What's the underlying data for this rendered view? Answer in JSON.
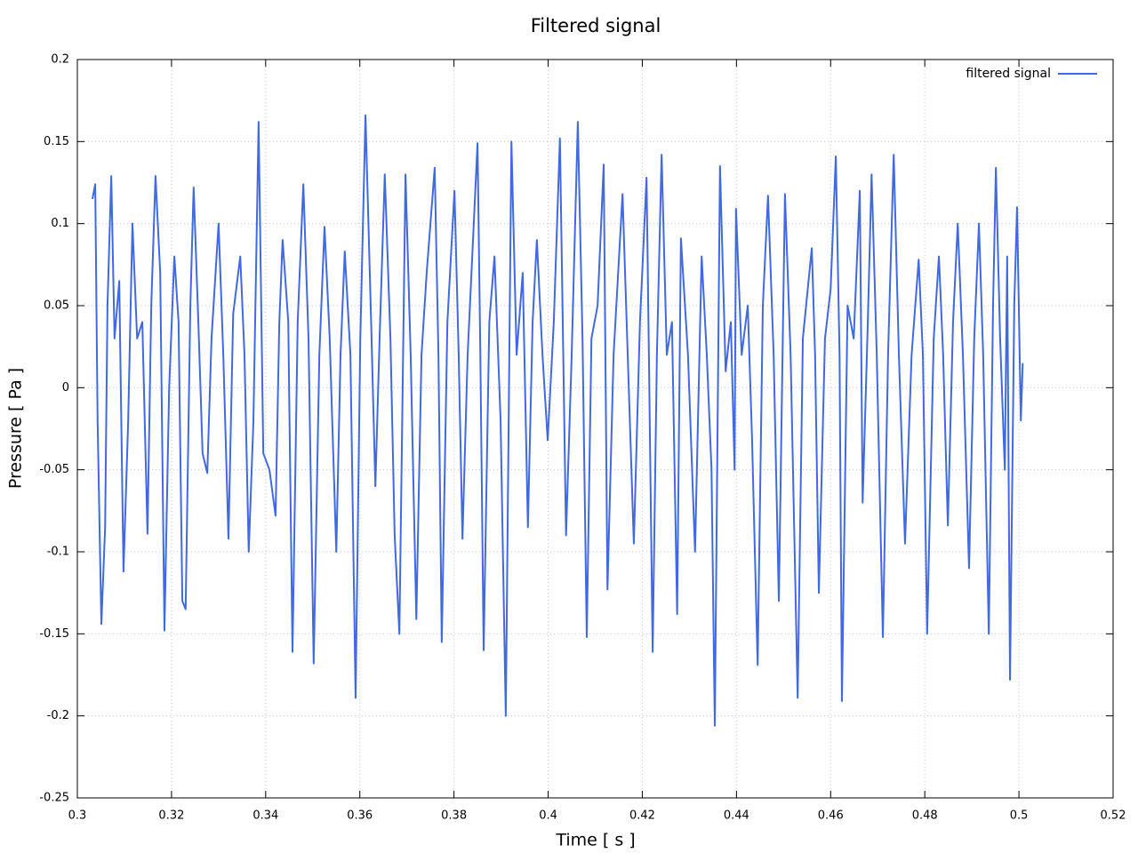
{
  "chart_data": {
    "type": "line",
    "title": "Filtered signal",
    "xlabel": "Time [ s ]",
    "ylabel": "Pressure [ Pa ]",
    "xlim": [
      0.3,
      0.52
    ],
    "ylim": [
      -0.25,
      0.2
    ],
    "xticks": [
      0.3,
      0.32,
      0.34,
      0.36,
      0.38,
      0.4,
      0.42,
      0.44,
      0.46,
      0.48,
      0.5,
      0.52
    ],
    "yticks": [
      -0.25,
      -0.2,
      -0.15,
      -0.1,
      -0.05,
      0,
      0.05,
      0.1,
      0.15,
      0.2
    ],
    "grid": true,
    "legend": "top-right",
    "x": [
      0.3032,
      0.3038,
      0.3043,
      0.3051,
      0.3059,
      0.3064,
      0.3072,
      0.3079,
      0.3089,
      0.3098,
      0.3108,
      0.3117,
      0.3127,
      0.3138,
      0.3149,
      0.3157,
      0.3166,
      0.3176,
      0.3185,
      0.3195,
      0.3206,
      0.3215,
      0.3223,
      0.323,
      0.324,
      0.3247,
      0.3257,
      0.3266,
      0.3276,
      0.3285,
      0.33,
      0.331,
      0.3321,
      0.3331,
      0.3346,
      0.3355,
      0.3364,
      0.3374,
      0.3385,
      0.3395,
      0.3408,
      0.3421,
      0.3429,
      0.3436,
      0.3448,
      0.3457,
      0.3468,
      0.348,
      0.3491,
      0.3502,
      0.3514,
      0.3525,
      0.3536,
      0.355,
      0.3559,
      0.3568,
      0.358,
      0.3591,
      0.3601,
      0.3612,
      0.3624,
      0.3633,
      0.3642,
      0.3653,
      0.3665,
      0.3674,
      0.3684,
      0.3697,
      0.3708,
      0.372,
      0.3731,
      0.3742,
      0.3759,
      0.3767,
      0.3774,
      0.3786,
      0.3801,
      0.381,
      0.3818,
      0.3829,
      0.385,
      0.3856,
      0.3863,
      0.3875,
      0.3886,
      0.3899,
      0.391,
      0.3922,
      0.3933,
      0.3946,
      0.3957,
      0.3967,
      0.3976,
      0.3988,
      0.3999,
      0.4012,
      0.4025,
      0.4038,
      0.405,
      0.4063,
      0.4073,
      0.4082,
      0.4092,
      0.4105,
      0.4118,
      0.4126,
      0.4139,
      0.4158,
      0.4169,
      0.4182,
      0.4195,
      0.4209,
      0.4214,
      0.4222,
      0.4231,
      0.4241,
      0.4252,
      0.4263,
      0.4274,
      0.4282,
      0.4297,
      0.4312,
      0.4326,
      0.4337,
      0.4347,
      0.4354,
      0.4365,
      0.4377,
      0.4388,
      0.4396,
      0.4399,
      0.4411,
      0.4424,
      0.4433,
      0.4445,
      0.4456,
      0.4467,
      0.4479,
      0.449,
      0.4503,
      0.4515,
      0.453,
      0.4541,
      0.456,
      0.4567,
      0.4575,
      0.4588,
      0.46,
      0.4611,
      0.4619,
      0.4624,
      0.4636,
      0.4649,
      0.4662,
      0.4668,
      0.4679,
      0.4687,
      0.4698,
      0.4711,
      0.4722,
      0.4734,
      0.4745,
      0.4758,
      0.4772,
      0.4787,
      0.4796,
      0.4805,
      0.4819,
      0.483,
      0.4839,
      0.4849,
      0.486,
      0.487,
      0.4881,
      0.4894,
      0.4905,
      0.4915,
      0.4924,
      0.4936,
      0.4945,
      0.4951,
      0.496,
      0.497,
      0.4975,
      0.4981,
      0.499,
      0.4996,
      0.5004,
      0.5008
    ],
    "series": [
      {
        "name": "filtered signal",
        "color": "#4169e1",
        "values": [
          0.115,
          0.124,
          -0.02,
          -0.144,
          -0.085,
          0.05,
          0.129,
          0.03,
          0.065,
          -0.112,
          -0.02,
          0.1,
          0.03,
          0.04,
          -0.089,
          0.05,
          0.129,
          0.07,
          -0.148,
          0,
          0.08,
          0.04,
          -0.13,
          -0.135,
          0.05,
          0.122,
          0.04,
          -0.04,
          -0.052,
          0.03,
          0.1,
          0.02,
          -0.092,
          0.045,
          0.08,
          0.02,
          -0.1,
          -0.02,
          0.162,
          -0.04,
          -0.05,
          -0.078,
          0.04,
          0.09,
          0.04,
          -0.161,
          0.04,
          0.124,
          0.03,
          -0.168,
          0.02,
          0.098,
          0.03,
          -0.1,
          0.02,
          0.083,
          0.02,
          -0.189,
          0.03,
          0.166,
          0.04,
          -0.06,
          0.03,
          0.13,
          0.03,
          -0.09,
          -0.15,
          0.13,
          0.02,
          -0.141,
          0.02,
          0.07,
          0.134,
          0.02,
          -0.155,
          0.04,
          0.12,
          0.02,
          -0.092,
          0.02,
          0.149,
          0.02,
          -0.16,
          0.04,
          0.08,
          -0.02,
          -0.2,
          0.15,
          0.02,
          0.07,
          -0.085,
          0.04,
          0.09,
          0.02,
          -0.032,
          0.04,
          0.152,
          -0.09,
          0.02,
          0.162,
          0.03,
          -0.152,
          0.03,
          0.05,
          0.136,
          -0.123,
          0.02,
          0.118,
          0.02,
          -0.095,
          0.04,
          0.128,
          0.02,
          -0.161,
          0.02,
          0.142,
          0.02,
          0.04,
          -0.138,
          0.091,
          0.02,
          -0.1,
          0.08,
          0.02,
          -0.05,
          -0.206,
          0.135,
          0.01,
          0.04,
          -0.05,
          0.109,
          0.02,
          0.05,
          -0.03,
          -0.169,
          0.05,
          0.117,
          0.02,
          -0.13,
          0.118,
          0.02,
          -0.189,
          0.03,
          0.085,
          0.02,
          -0.125,
          0.03,
          0.06,
          0.141,
          0.02,
          -0.191,
          0.05,
          0.03,
          0.12,
          -0.07,
          0.04,
          0.13,
          0.02,
          -0.152,
          0.02,
          0.142,
          0.02,
          -0.095,
          0.02,
          0.078,
          0.02,
          -0.15,
          0.03,
          0.08,
          0.02,
          -0.084,
          0.04,
          0.1,
          0.02,
          -0.11,
          0.03,
          0.1,
          0.02,
          -0.15,
          0.05,
          0.134,
          0.03,
          -0.05,
          0.08,
          -0.178,
          0.05,
          0.11,
          -0.02,
          0.015
        ]
      }
    ]
  }
}
